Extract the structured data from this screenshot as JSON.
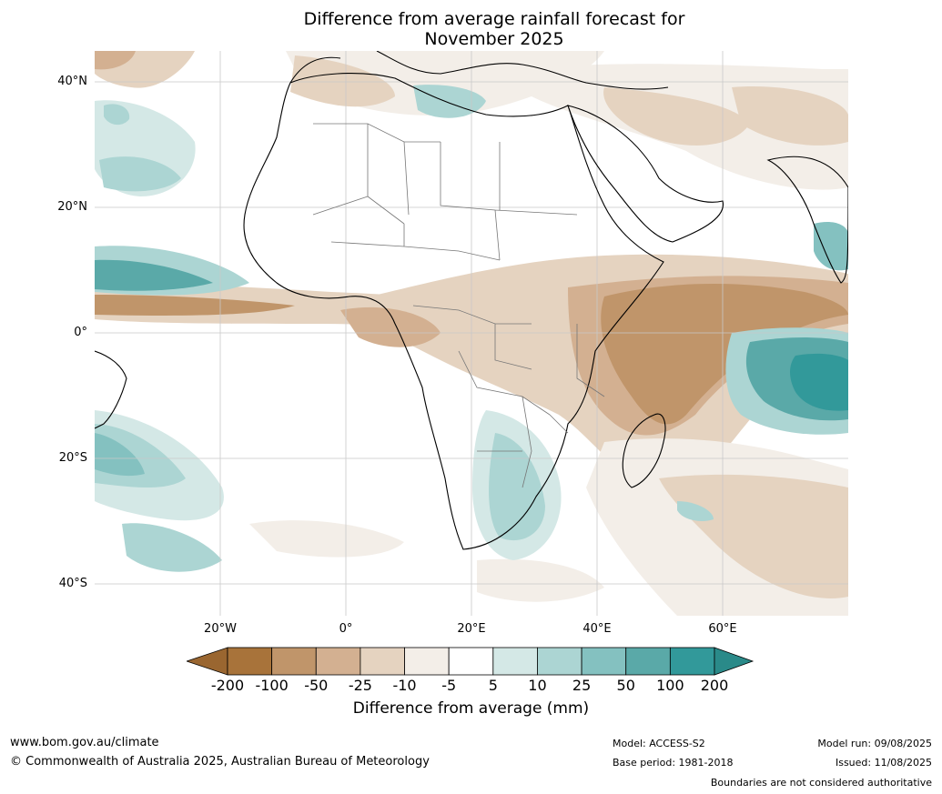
{
  "title_line1": "Difference from average rainfall forecast for",
  "title_line2": "November 2025",
  "lat_labels": [
    "40°N",
    "20°N",
    "0°",
    "20°S",
    "40°S"
  ],
  "lon_labels": [
    "20°W",
    "0°",
    "20°E",
    "40°E",
    "60°E"
  ],
  "colorbar": {
    "title": "Difference from average (mm)",
    "labels": [
      "-200",
      "-100",
      "-50",
      "-25",
      "-10",
      "-5",
      "5",
      "10",
      "25",
      "50",
      "100",
      "200"
    ],
    "colors": [
      "#a8733a",
      "#c0956a",
      "#d3b091",
      "#e5d3c0",
      "#f3eee8",
      "#ffffff",
      "#d4e8e6",
      "#acd5d3",
      "#84c1c0",
      "#5aa9a8",
      "#32999a",
      "#2a8a89"
    ],
    "arrow_low_color": "#9a6630",
    "arrow_high_color": "#2a8a89"
  },
  "footer": {
    "url": "www.bom.gov.au/climate",
    "copyright": "© Commonwealth of Australia 2025, Australian Bureau of Meteorology",
    "model": "Model: ACCESS-S2",
    "base_period": "Base period: 1981-2018",
    "model_run": "Model run: 09/08/2025",
    "issued": "Issued: 11/08/2025",
    "disclaimer": "Boundaries are not considered authoritative"
  }
}
